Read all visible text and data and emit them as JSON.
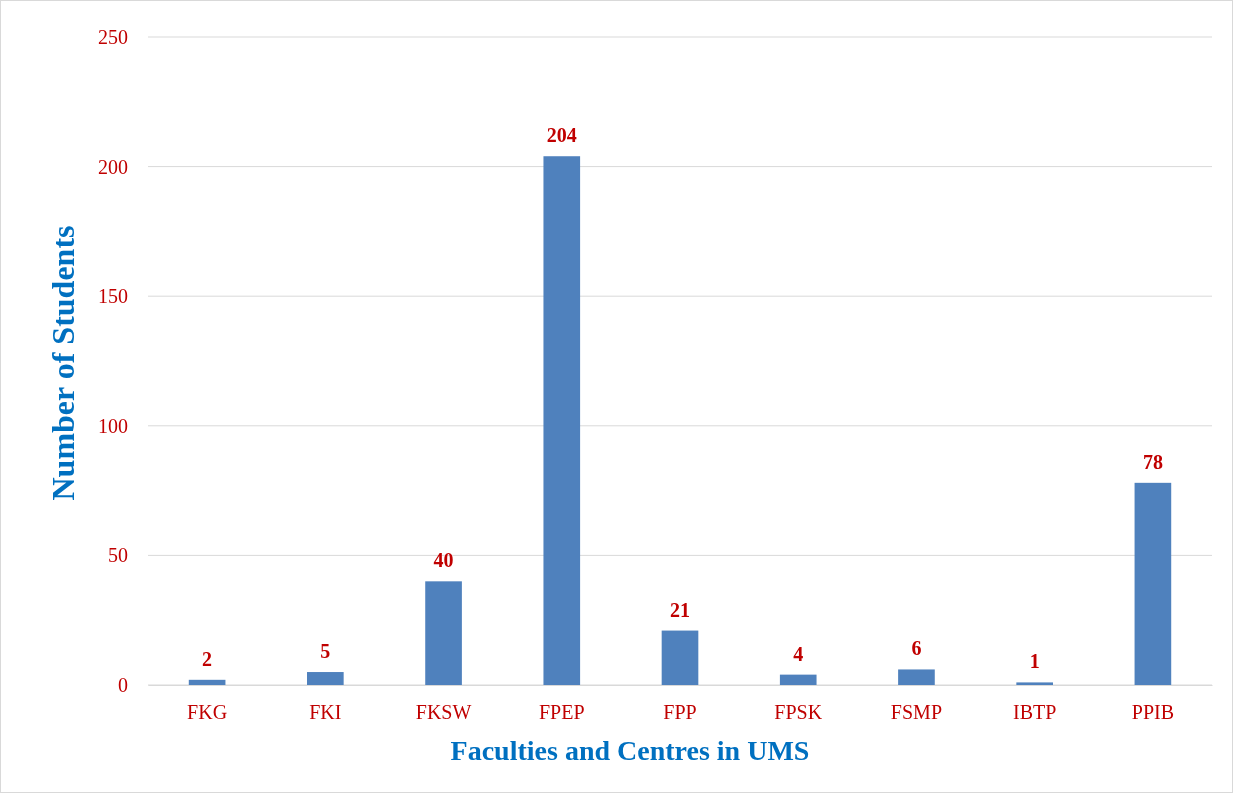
{
  "chart_data": {
    "type": "bar",
    "xlabel": "Faculties and Centres in UMS",
    "ylabel": "Number of Students",
    "categories": [
      "FKG",
      "FKI",
      "FKSW",
      "FPEP",
      "FPP",
      "FPSK",
      "FSMP",
      "IBTP",
      "PPIB"
    ],
    "values": [
      2,
      5,
      40,
      204,
      21,
      4,
      6,
      1,
      78
    ],
    "color": "#4f81bd",
    "ylim": [
      0,
      250
    ],
    "yticks": [
      0,
      50,
      100,
      150,
      200,
      250
    ],
    "grid": "y",
    "data_labels": true
  }
}
